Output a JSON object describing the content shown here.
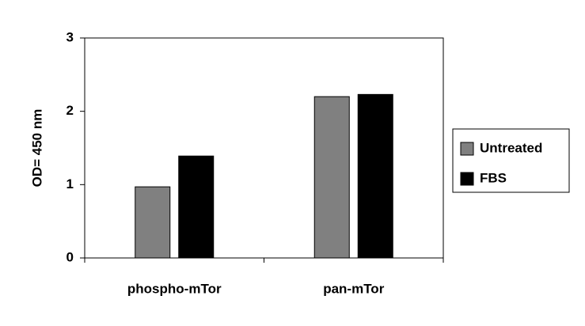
{
  "chart_data": {
    "type": "bar",
    "y_label": "OD= 450 nm",
    "categories": [
      "phospho-mTor",
      "pan-mTor"
    ],
    "series": [
      {
        "name": "Untreated",
        "color": "#808080",
        "values": [
          0.97,
          2.2
        ]
      },
      {
        "name": "FBS",
        "color": "#000000",
        "values": [
          1.39,
          2.23
        ]
      }
    ],
    "ylim": [
      0,
      3
    ],
    "yticks": [
      0,
      1,
      2,
      3
    ],
    "grid": false,
    "legend": "right"
  }
}
